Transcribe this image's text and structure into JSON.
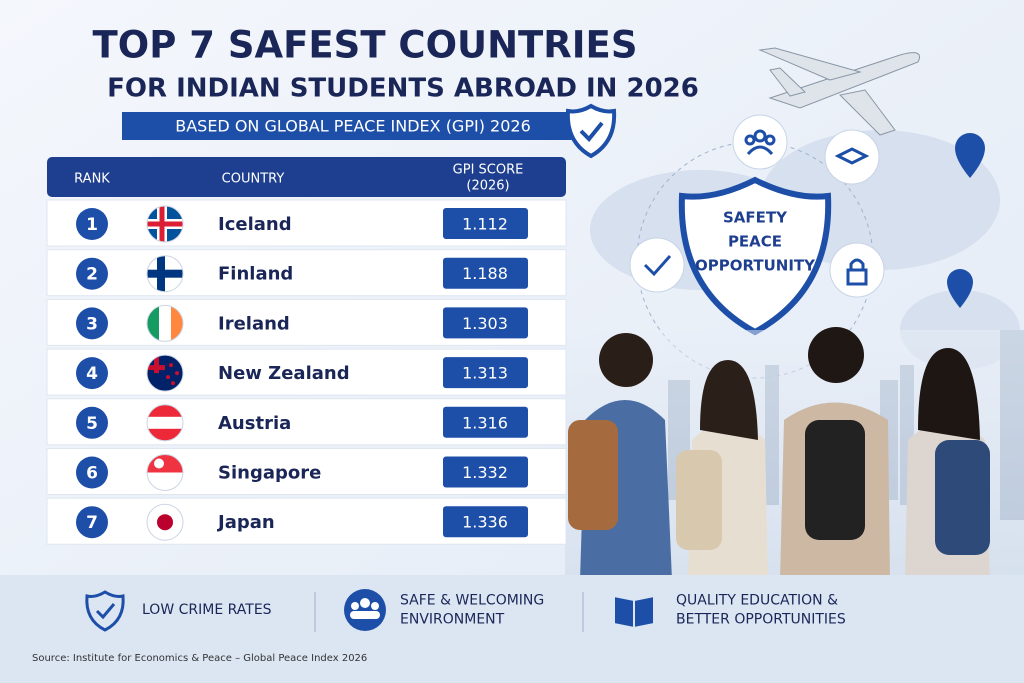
{
  "header": {
    "title": "TOP 7 SAFEST COUNTRIES",
    "subtitle": "FOR INDIAN STUDENTS ABROAD IN 2026",
    "badge": "BASED ON GLOBAL PEACE INDEX (GPI) 2026"
  },
  "table": {
    "columns": [
      "RANK",
      "COUNTRY",
      "GPI SCORE",
      "(2026)"
    ],
    "rows": [
      [
        1,
        "Iceland",
        1.112
      ],
      [
        2,
        "Finland",
        1.188
      ],
      [
        3,
        "Ireland",
        1.303
      ],
      [
        4,
        "New Zealand",
        1.313
      ],
      [
        5,
        "Austria",
        1.316
      ],
      [
        6,
        "Singapore",
        1.332
      ],
      [
        7,
        "Japan",
        1.336
      ]
    ]
  },
  "shield": [
    "SAFETY",
    "PEACE",
    "OPPORTUNITY"
  ],
  "features": [
    [
      "LOW CRIME RATES"
    ],
    [
      "SAFE & WELCOMING",
      "ENVIRONMENT"
    ],
    [
      "QUALITY EDUCATION &",
      "BETTER OPPORTUNITIES"
    ]
  ],
  "source": "Source: Institute for Economics & Peace – Global Peace Index 2026"
}
